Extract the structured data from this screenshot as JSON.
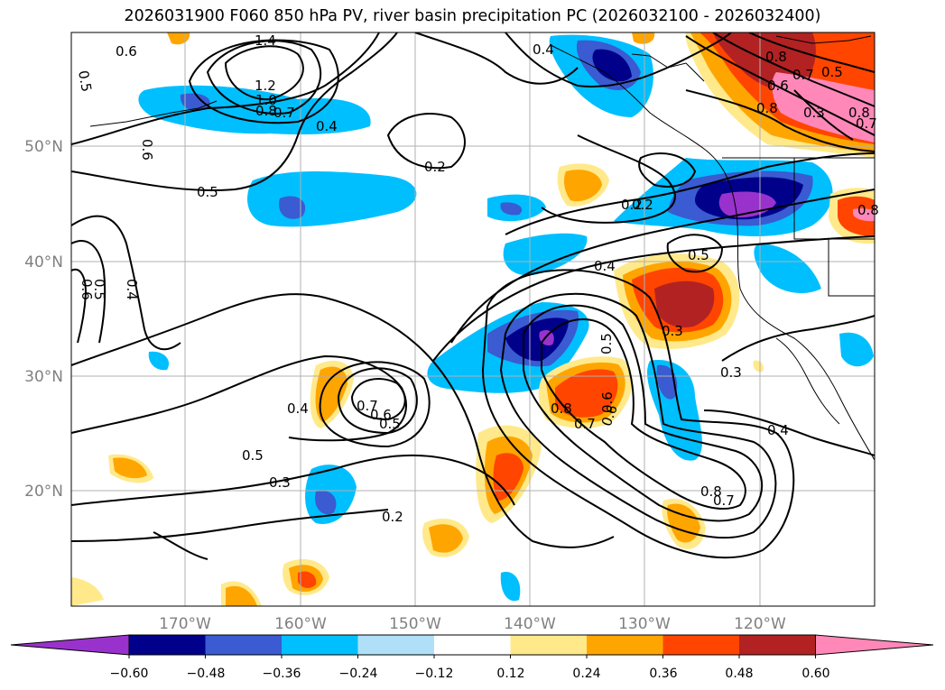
{
  "title": "2026031900 F060 850 hPa PV, river basin precipitation PC (2026032100 - 2026032400)",
  "map": {
    "lon_labels": [
      "170°W",
      "160°W",
      "150°W",
      "140°W",
      "130°W",
      "120°W"
    ],
    "lat_labels": [
      "50°N",
      "40°N",
      "30°N",
      "20°N"
    ],
    "contour_labels": [
      "0.6",
      "1.4",
      "0.5",
      "1.2",
      "0.8",
      "1.0",
      "0.7",
      "0.4",
      "0.6",
      "0.4",
      "0.2",
      "0.5",
      "0.2",
      "0.4",
      "0.6",
      "0.5",
      "0.4",
      "0.5",
      "0.3",
      "0.4",
      "0.7",
      "0.6",
      "0.5",
      "0.5",
      "0.3",
      "0.2",
      "0.5",
      "0.6",
      "0.8",
      "0.7",
      "0.6",
      "0.3",
      "0.4",
      "0.8",
      "0.7",
      "0.6",
      "0.5",
      "0.3",
      "0.8",
      "0.7",
      "0.8",
      "0.7",
      "0.2",
      "0.8",
      "0.8"
    ]
  },
  "colorbar": {
    "ticks": [
      "−0.60",
      "−0.48",
      "−0.36",
      "−0.24",
      "−0.12",
      "0.12",
      "0.24",
      "0.36",
      "0.48",
      "0.60"
    ],
    "colors": [
      "#9932cc",
      "#00008b",
      "#3a5bd1",
      "#00bfff",
      "#b0e0f8",
      "#ffffff",
      "#ffe98a",
      "#ffa500",
      "#ff4500",
      "#b22222",
      "#ff88b8"
    ]
  }
}
